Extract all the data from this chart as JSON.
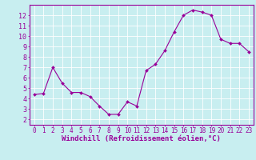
{
  "x": [
    0,
    1,
    2,
    3,
    4,
    5,
    6,
    7,
    8,
    9,
    10,
    11,
    12,
    13,
    14,
    15,
    16,
    17,
    18,
    19,
    20,
    21,
    22,
    23
  ],
  "y": [
    4.4,
    4.5,
    7.0,
    5.5,
    4.6,
    4.6,
    4.2,
    3.3,
    2.5,
    2.5,
    3.7,
    3.3,
    6.7,
    7.3,
    8.6,
    10.4,
    12.0,
    12.5,
    12.3,
    12.0,
    9.7,
    9.3,
    9.3,
    8.5
  ],
  "line_color": "#990099",
  "marker": "D",
  "marker_size": 2,
  "background_color": "#c8eef0",
  "grid_color": "#ffffff",
  "xlabel": "Windchill (Refroidissement éolien,°C)",
  "ylabel": "",
  "xlim": [
    -0.5,
    23.5
  ],
  "ylim": [
    1.5,
    13.0
  ],
  "yticks": [
    2,
    3,
    4,
    5,
    6,
    7,
    8,
    9,
    10,
    11,
    12
  ],
  "xticks": [
    0,
    1,
    2,
    3,
    4,
    5,
    6,
    7,
    8,
    9,
    10,
    11,
    12,
    13,
    14,
    15,
    16,
    17,
    18,
    19,
    20,
    21,
    22,
    23
  ],
  "axis_color": "#990099",
  "xlabel_fontsize": 6.5,
  "tick_fontsize": 5.5,
  "ytick_fontsize": 6.0,
  "linewidth": 0.8
}
